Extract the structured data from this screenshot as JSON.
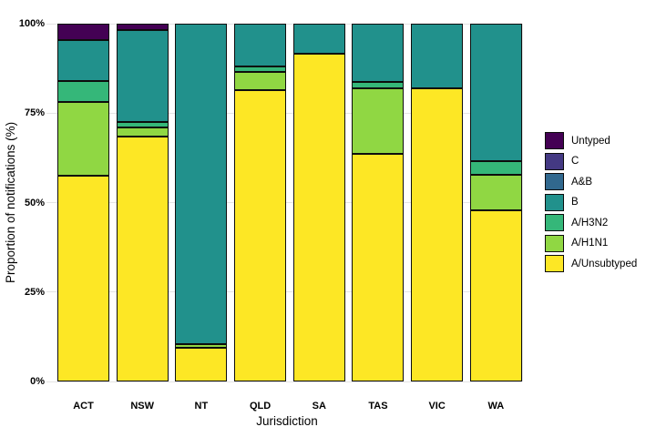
{
  "chart_data": {
    "type": "bar",
    "stacked": true,
    "title": "",
    "xlabel": "Jurisdiction",
    "ylabel": "Proportion of notifications (%)",
    "categories": [
      "ACT",
      "NSW",
      "NT",
      "QLD",
      "SA",
      "TAS",
      "VIC",
      "WA"
    ],
    "y_ticks": [
      {
        "label": "0%",
        "value": 0
      },
      {
        "label": "25%",
        "value": 25
      },
      {
        "label": "50%",
        "value": 50
      },
      {
        "label": "75%",
        "value": 75
      },
      {
        "label": "100%",
        "value": 100
      }
    ],
    "ylim": [
      0,
      100
    ],
    "grid": "horizontal-light",
    "legend_position": "right",
    "legend_order_top_to_bottom": [
      "Untyped",
      "C",
      "A&B",
      "B",
      "A/H3N2",
      "A/H1N1",
      "A/Unsubtyped"
    ],
    "stack_order_bottom_to_top": [
      "A/Unsubtyped",
      "A/H1N1",
      "A/H3N2",
      "B",
      "A&B",
      "C",
      "Untyped"
    ],
    "series": [
      {
        "name": "A/Unsubtyped",
        "color": "#fde725",
        "values": [
          57.5,
          68.5,
          9.5,
          81.5,
          91.7,
          63.7,
          82.0,
          47.8
        ]
      },
      {
        "name": "A/H1N1",
        "color": "#90d743",
        "values": [
          20.5,
          2.5,
          1.0,
          5.0,
          0,
          18.3,
          0,
          10.0
        ]
      },
      {
        "name": "A/H3N2",
        "color": "#35b779",
        "values": [
          6.0,
          1.5,
          0,
          1.5,
          0,
          1.8,
          0,
          3.8
        ]
      },
      {
        "name": "B",
        "color": "#21918c",
        "values": [
          11.5,
          25.8,
          89.5,
          12.0,
          8.3,
          16.2,
          18.0,
          38.4
        ]
      },
      {
        "name": "A&B",
        "color": "#31688e",
        "values": [
          0,
          0,
          0,
          0,
          0,
          0,
          0,
          0
        ]
      },
      {
        "name": "C",
        "color": "#443983",
        "values": [
          0,
          0,
          0,
          0,
          0,
          0,
          0,
          0
        ]
      },
      {
        "name": "Untyped",
        "color": "#440154",
        "values": [
          4.5,
          1.7,
          0,
          0,
          0,
          0,
          0,
          0
        ]
      }
    ],
    "colors": {
      "Untyped": "#440154",
      "C": "#443983",
      "A&B": "#31688e",
      "B": "#21918c",
      "A/H3N2": "#35b779",
      "A/H1N1": "#90d743",
      "A/Unsubtyped": "#fde725"
    }
  }
}
